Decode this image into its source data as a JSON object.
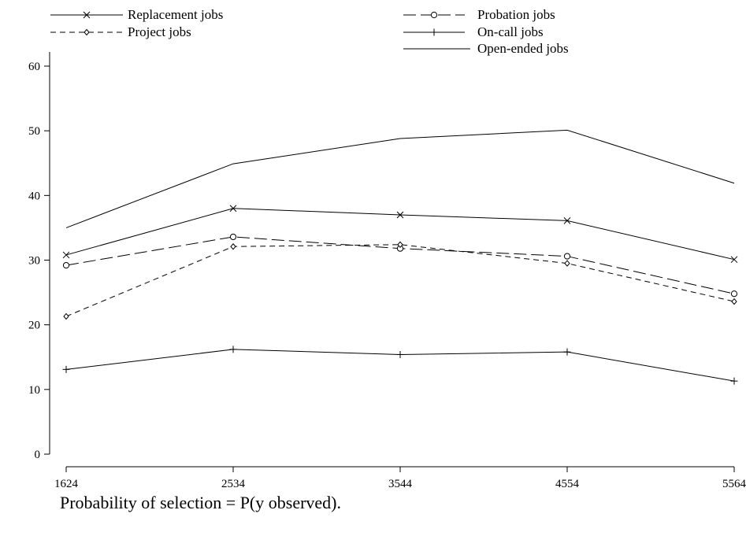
{
  "chart_data": {
    "type": "line",
    "categories": [
      "1624",
      "2534",
      "3544",
      "4554",
      "5564"
    ],
    "y_ticks": [
      0,
      10,
      20,
      30,
      40,
      50,
      60
    ],
    "ylim": [
      0,
      60
    ],
    "grid": false,
    "legend_position": "top",
    "series": [
      {
        "name": "Open-ended jobs",
        "values": [
          35.0,
          44.9,
          48.8,
          50.1,
          41.9
        ],
        "marker": "none",
        "dash": "solid"
      },
      {
        "name": "Replacement jobs",
        "values": [
          30.8,
          38.0,
          37.0,
          36.1,
          30.1
        ],
        "marker": "x",
        "dash": "solid"
      },
      {
        "name": "Probation jobs",
        "values": [
          29.2,
          33.6,
          31.8,
          30.6,
          24.8
        ],
        "marker": "circle",
        "dash": "longdash"
      },
      {
        "name": "Project jobs",
        "values": [
          21.3,
          32.1,
          32.4,
          29.5,
          23.6
        ],
        "marker": "diamond",
        "dash": "dash"
      },
      {
        "name": "On-call jobs",
        "values": [
          13.1,
          16.2,
          15.4,
          15.8,
          11.3
        ],
        "marker": "plus",
        "dash": "solid"
      }
    ]
  },
  "legend": [
    {
      "label": "Replacement jobs",
      "series": 1
    },
    {
      "label": "Probation jobs",
      "series": 2
    },
    {
      "label": "Project jobs",
      "series": 3
    },
    {
      "label": "On-call jobs",
      "series": 4
    },
    {
      "label": "Open-ended jobs",
      "series": 0
    }
  ],
  "caption": "Probability of selection = P(y observed)."
}
